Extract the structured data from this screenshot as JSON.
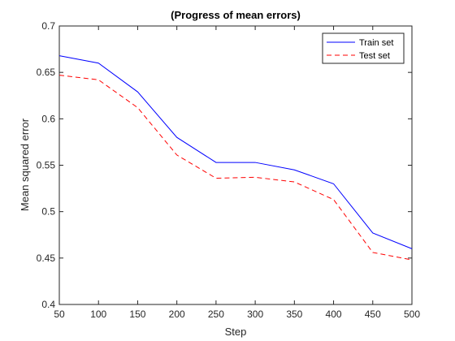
{
  "chart_data": {
    "type": "line",
    "title": "(Progress of mean errors)",
    "xlabel": "Step",
    "ylabel": "Mean squared error",
    "xlim": [
      50,
      500
    ],
    "ylim": [
      0.4,
      0.7
    ],
    "x_ticks": [
      "50",
      "100",
      "150",
      "200",
      "250",
      "300",
      "350",
      "400",
      "450",
      "500"
    ],
    "y_ticks": [
      "0.4",
      "0.45",
      "0.5",
      "0.55",
      "0.6",
      "0.65",
      "0.7"
    ],
    "x": [
      50,
      100,
      150,
      200,
      250,
      300,
      350,
      400,
      450,
      500
    ],
    "series": [
      {
        "name": "Train set",
        "values": [
          0.668,
          0.66,
          0.629,
          0.58,
          0.553,
          0.553,
          0.545,
          0.53,
          0.477,
          0.46
        ],
        "color": "#0000ff",
        "style": "solid"
      },
      {
        "name": "Test set",
        "values": [
          0.647,
          0.642,
          0.612,
          0.561,
          0.536,
          0.537,
          0.532,
          0.513,
          0.456,
          0.448
        ],
        "color": "#ff0000",
        "style": "dashed"
      }
    ],
    "grid": false,
    "legend_position": "top-right"
  }
}
